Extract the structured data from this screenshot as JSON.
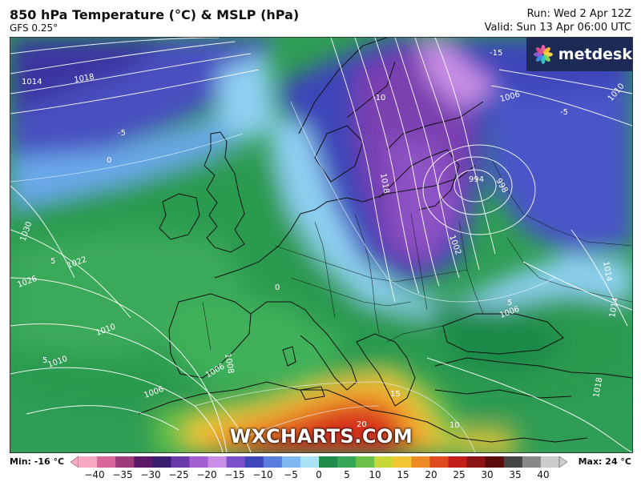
{
  "header": {
    "title": "850 hPa Temperature (°C) & MSLP (hPa)",
    "model": "GFS 0.25°",
    "run": "Run: Wed 2 Apr 12Z",
    "valid": "Valid: Sun 13 Apr 06:00 UTC"
  },
  "brand": {
    "logo_text": "metdesk",
    "watermark": "WXCHARTS.COM",
    "logo_bg": "#1c2a55"
  },
  "legend": {
    "min_label": "Min: -16 °C",
    "max_label": "Max: 24 °C",
    "ticks": [
      "−40",
      "−35",
      "−30",
      "−25",
      "−20",
      "−15",
      "−10",
      "−5",
      "0",
      "5",
      "10",
      "15",
      "20",
      "25",
      "30",
      "35",
      "40"
    ],
    "colors": [
      "#f7a8c4",
      "#d9689a",
      "#9e3b7a",
      "#5b1a66",
      "#3a1d6e",
      "#6a3aa8",
      "#a15fd0",
      "#c98ee6",
      "#7a4fc9",
      "#3e45b8",
      "#5a7de0",
      "#7fb8f0",
      "#a8e4f5",
      "#1f8a4a",
      "#35a655",
      "#6cc14a",
      "#c8d838",
      "#f3c534",
      "#ee8a25",
      "#e04a1f",
      "#c41e1a",
      "#8c1414",
      "#5a0c0c",
      "#444444",
      "#888888",
      "#cccccc"
    ]
  },
  "isobars": [
    "1030",
    "1026",
    "1022",
    "1018",
    "1014",
    "1010",
    "1006",
    "1002",
    "998",
    "994",
    "1008",
    "1014",
    "1018",
    "1010",
    "1006",
    "1010",
    "1014",
    "1018",
    "1006",
    "1006"
  ],
  "isotherms": [
    "-15",
    "-10",
    "-5",
    "0",
    "5",
    "10",
    "15",
    "20",
    "0",
    "5",
    "-5",
    "5"
  ],
  "colors": {
    "cold_purple": "#7a3fb0",
    "blue": "#3e45b8",
    "light_blue": "#7fc6f0",
    "green": "#2f9d55",
    "yellow": "#f3c534",
    "orange": "#ee8a25",
    "red": "#d52a1d",
    "coast": "#111111",
    "contour": "#ffffff"
  }
}
